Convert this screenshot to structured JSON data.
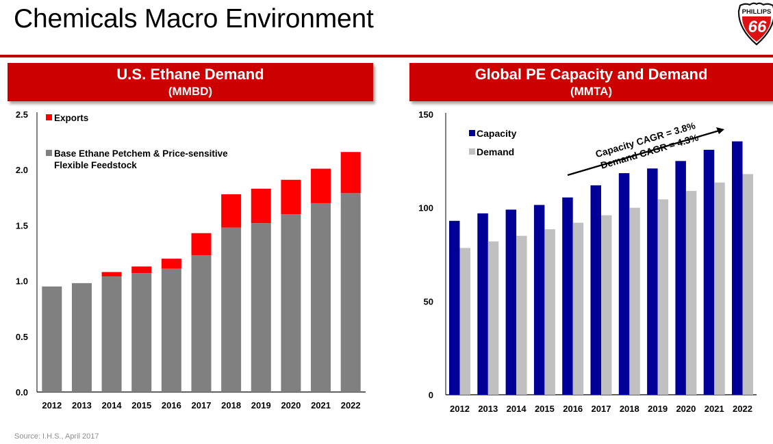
{
  "page": {
    "title": "Chemicals Macro Environment",
    "source": "Source: I.H.S., April 2017",
    "logo": {
      "top_text": "PHILLIPS",
      "number": "66",
      "icon": "phillips66-shield-logo-icon"
    }
  },
  "colors": {
    "brand_red": "#cc0000",
    "exports": "#ff0000",
    "base": "#808080",
    "capacity": "#000099",
    "demand": "#c0c0c0"
  },
  "chart_data": [
    {
      "type": "bar",
      "stacked": true,
      "title": "U.S. Ethane Demand",
      "subtitle": "(MMBD)",
      "xlabel": "",
      "ylabel": "",
      "categories": [
        "2012",
        "2013",
        "2014",
        "2015",
        "2016",
        "2017",
        "2018",
        "2019",
        "2020",
        "2021",
        "2022"
      ],
      "series": [
        {
          "name": "Base Ethane Petchem & Price-sensitive Flexible Feedstock",
          "values": [
            0.95,
            0.98,
            1.04,
            1.07,
            1.11,
            1.23,
            1.48,
            1.52,
            1.6,
            1.7,
            1.79
          ]
        },
        {
          "name": "Exports",
          "values": [
            0.0,
            0.0,
            0.04,
            0.06,
            0.09,
            0.2,
            0.3,
            0.31,
            0.31,
            0.31,
            0.37
          ]
        }
      ],
      "ylim": [
        0,
        2.5
      ],
      "yticks": [
        "0.0",
        "0.5",
        "1.0",
        "1.5",
        "2.0",
        "2.5"
      ],
      "grid": false,
      "legend": {
        "placement": "top-left",
        "entries": [
          "Exports",
          "Base Ethane Petchem & Price-sensitive Flexible Feedstock"
        ]
      }
    },
    {
      "type": "bar",
      "stacked": false,
      "title": "Global PE Capacity and Demand",
      "subtitle": "(MMTA)",
      "xlabel": "",
      "ylabel": "",
      "categories": [
        "2012",
        "2013",
        "2014",
        "2015",
        "2016",
        "2017",
        "2018",
        "2019",
        "2020",
        "2021",
        "2022"
      ],
      "series": [
        {
          "name": "Capacity",
          "values": [
            93,
            97,
            99,
            101.5,
            105.5,
            112,
            118.5,
            121,
            125,
            131,
            135.5
          ]
        },
        {
          "name": "Demand",
          "values": [
            78.5,
            82,
            85,
            88.5,
            92,
            96,
            100,
            104.5,
            109,
            113.5,
            118
          ]
        }
      ],
      "ylim": [
        0,
        150
      ],
      "yticks": [
        "0",
        "50",
        "100",
        "150"
      ],
      "grid": false,
      "legend": {
        "placement": "top-left",
        "entries": [
          "Capacity",
          "Demand"
        ]
      },
      "annotations": [
        "Capacity CAGR = 3.8%",
        "Demand CAGR = 4.3%"
      ]
    }
  ]
}
